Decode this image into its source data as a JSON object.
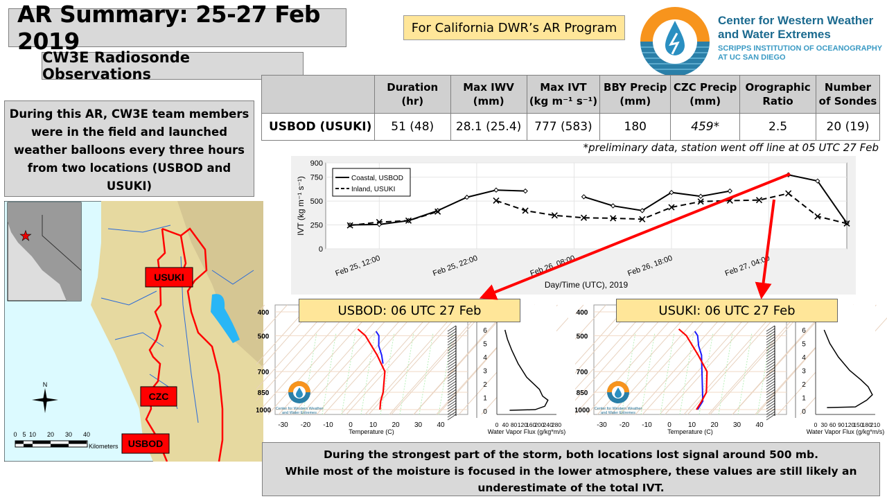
{
  "header": {
    "title": "AR Summary: 25-27 Feb 2019",
    "subtitle": "CW3E Radiosonde Observations",
    "program": "For California DWR’s AR Program"
  },
  "logo": {
    "line1": "Center for Western Weather",
    "line2": "and Water Extremes",
    "line3": "SCRIPPS INSTITUTION OF OCEANOGRAPHY",
    "line4": "AT UC SAN DIEGO",
    "colors": {
      "orange": "#f7941d",
      "blue": "#2a7fa8"
    }
  },
  "table": {
    "headers": [
      {
        "l1": "",
        "l2": ""
      },
      {
        "l1": "Duration",
        "l2": "(hr)"
      },
      {
        "l1": "Max IWV",
        "l2": "(mm)"
      },
      {
        "l1": "Max IVT",
        "l2": "(kg m⁻¹ s⁻¹)"
      },
      {
        "l1": "BBY Precip",
        "l2": "(mm)"
      },
      {
        "l1": "CZC Precip",
        "l2": "(mm)"
      },
      {
        "l1": "Orographic",
        "l2": "Ratio"
      },
      {
        "l1": "Number",
        "l2": "of Sondes"
      }
    ],
    "row": [
      "USBOD (USUKI)",
      "51 (48)",
      "28.1 (25.4)",
      "777 (583)",
      "180",
      "459*",
      "2.5",
      "20 (19)"
    ],
    "note": "*preliminary data, station went off line at 05 UTC  27 Feb"
  },
  "left_text": "During this AR, CW3E team members were in the field and launched weather balloons every three hours from two locations (USBOD and USUKI)",
  "map": {
    "labels": [
      "USUKI",
      "CZC",
      "USBOD"
    ],
    "north": "N",
    "scale_ticks": [
      "0",
      "5",
      "10",
      "20",
      "30",
      "40"
    ],
    "scale_unit": "Kilometers"
  },
  "chart_data": {
    "type": "line",
    "xlabel": "Day/Time (UTC), 2019",
    "ylabel": "IVT (kg m⁻¹ s⁻¹)",
    "x_units": "hours since Feb 25 06:00 UTC",
    "xlim": [
      0.5,
      54
    ],
    "ylim": [
      0,
      900
    ],
    "yticks": [
      0,
      250,
      500,
      750,
      900
    ],
    "xticks": [
      6,
      16,
      26,
      36,
      46
    ],
    "xtick_labels": [
      "Feb 25, 12:00",
      "Feb 25, 22:00",
      "Feb 26, 08:00",
      "Feb 26, 18:00",
      "Feb 27, 04:00"
    ],
    "legend": "top-left",
    "grid": true,
    "series": [
      {
        "name": "Coastal, USBOD",
        "style": "solid",
        "segments": [
          [
            [
              3,
              250
            ],
            [
              6,
              255
            ],
            [
              9,
              295
            ],
            [
              12,
              400
            ],
            [
              15,
              540
            ],
            [
              18,
              615
            ],
            [
              21,
              605
            ]
          ],
          [
            [
              27,
              545
            ],
            [
              30,
              450
            ],
            [
              33,
              400
            ],
            [
              36,
              590
            ],
            [
              39,
              550
            ],
            [
              42,
              605
            ]
          ],
          [
            [
              48,
              775
            ],
            [
              51,
              710
            ],
            [
              54,
              270
            ]
          ]
        ]
      },
      {
        "name": "Inland, USUKI",
        "style": "dashed",
        "segments": [
          [
            [
              3,
              245
            ],
            [
              6,
              280
            ],
            [
              9,
              295
            ],
            [
              12,
              390
            ]
          ],
          [
            [
              18,
              505
            ],
            [
              21,
              400
            ],
            [
              24,
              350
            ],
            [
              27,
              325
            ],
            [
              30,
              320
            ],
            [
              33,
              310
            ],
            [
              36,
              435
            ],
            [
              39,
              495
            ],
            [
              42,
              505
            ],
            [
              45,
              510
            ],
            [
              48,
              580
            ],
            [
              51,
              340
            ],
            [
              54,
              265
            ]
          ]
        ]
      }
    ]
  },
  "soundings": [
    {
      "title": "USBOD: 06 UTC 27 Feb",
      "pressure_ticks": [
        400,
        500,
        700,
        850,
        1000
      ],
      "temp_ticks": [
        -30,
        -20,
        -10,
        0,
        10,
        20,
        30,
        40
      ],
      "temp_label": "Temperature (C)",
      "height_ticks": [
        0,
        1,
        2,
        3,
        4,
        5,
        6
      ],
      "flux_ticks": [
        0,
        40,
        80,
        120,
        160,
        200,
        240,
        280
      ],
      "flux_max": 280,
      "flux_label": "Water Vapor Flux (g/kg*m/s)",
      "temperature": [
        [
          1000,
          13
        ],
        [
          925,
          10
        ],
        [
          850,
          7.5
        ],
        [
          700,
          0
        ],
        [
          600,
          -10
        ],
        [
          500,
          -23
        ],
        [
          470,
          -29
        ]
      ],
      "blue_curve": [
        [
          650,
          -4
        ],
        [
          600,
          -8
        ],
        [
          550,
          -13
        ],
        [
          500,
          -17
        ],
        [
          480,
          -20
        ]
      ],
      "flux_profile": [
        [
          60,
          0.05
        ],
        [
          180,
          0.1
        ],
        [
          225,
          0.35
        ],
        [
          240,
          0.8
        ],
        [
          215,
          1.1
        ],
        [
          200,
          1.6
        ],
        [
          180,
          1.9
        ],
        [
          140,
          2.5
        ],
        [
          100,
          3.5
        ],
        [
          70,
          4.5
        ],
        [
          50,
          5.3
        ],
        [
          38,
          6
        ]
      ]
    },
    {
      "title": "USUKI: 06 UTC 27 Feb",
      "pressure_ticks": [
        400,
        500,
        700,
        850,
        1000
      ],
      "temp_ticks": [
        -30,
        -20,
        -10,
        0,
        10,
        20,
        30,
        40
      ],
      "temp_label": "Temperature (C)",
      "height_ticks": [
        0,
        1,
        2,
        3,
        4,
        5,
        6
      ],
      "flux_ticks": [
        0,
        30,
        60,
        90,
        120,
        150,
        180,
        210
      ],
      "flux_max": 210,
      "flux_label": "Water Vapor Flux (g/kg*m/s)",
      "temperature": [
        [
          1000,
          12
        ],
        [
          925,
          11
        ],
        [
          850,
          9.5
        ],
        [
          700,
          1.5
        ],
        [
          600,
          -9
        ],
        [
          500,
          -22
        ],
        [
          470,
          -28
        ]
      ],
      "blue_curve": [
        [
          1000,
          12.5
        ],
        [
          925,
          11.5
        ],
        [
          650,
          -4
        ],
        [
          600,
          -7.5
        ],
        [
          550,
          -12.5
        ],
        [
          500,
          -17
        ],
        [
          480,
          -20
        ]
      ],
      "flux_profile": [
        [
          40,
          0.25
        ],
        [
          140,
          0.3
        ],
        [
          180,
          0.8
        ],
        [
          200,
          1.2
        ],
        [
          185,
          1.8
        ],
        [
          160,
          2.3
        ],
        [
          120,
          3
        ],
        [
          80,
          4
        ],
        [
          50,
          5
        ],
        [
          30,
          6
        ]
      ]
    }
  ],
  "mini_logo": {
    "line1": "Center for Western Weather",
    "line2": "and Water Extremes"
  },
  "bottom_text": {
    "line1": "During the strongest part of the storm, both locations lost signal around 500 mb.",
    "line2": "While most of the moisture is focused in the lower atmosphere, these values are still likely an underestimate of the total IVT."
  }
}
